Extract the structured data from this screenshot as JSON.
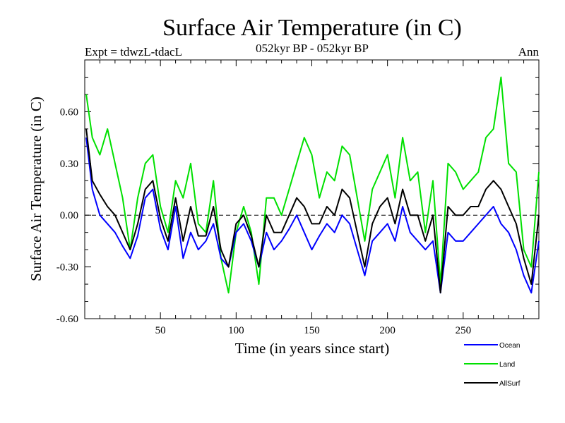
{
  "chart_data": {
    "type": "line",
    "title": "Surface Air Temperature (in C)",
    "subtitle_left": "Expt = tdwzL-tdacL",
    "subtitle_center": "052kyr BP - 052kyr BP",
    "subtitle_right": "Ann",
    "xlabel": "Time (in years since start)",
    "ylabel": "Surface Air Temperature (in C)",
    "xlim": [
      0,
      300
    ],
    "ylim": [
      -0.6,
      0.9
    ],
    "xticks": [
      50,
      100,
      150,
      200,
      250
    ],
    "xtick_labels": [
      "50",
      "100",
      "150",
      "200",
      "250"
    ],
    "yticks": [
      -0.6,
      -0.3,
      0.0,
      0.3,
      0.6
    ],
    "ytick_labels": [
      "-0.60",
      "-0.30",
      "0.00",
      "0.30",
      "0.60"
    ],
    "zero_line": "dashed",
    "legend_position": "bottom-right",
    "series": [
      {
        "name": "Ocean",
        "color": "#0000ff",
        "x": [
          1,
          5,
          10,
          15,
          20,
          25,
          30,
          35,
          40,
          45,
          50,
          55,
          60,
          65,
          70,
          75,
          80,
          85,
          90,
          95,
          100,
          105,
          110,
          115,
          120,
          125,
          130,
          135,
          140,
          145,
          150,
          155,
          160,
          165,
          170,
          175,
          180,
          185,
          190,
          195,
          200,
          205,
          210,
          215,
          220,
          225,
          230,
          235,
          240,
          245,
          250,
          255,
          260,
          265,
          270,
          275,
          280,
          285,
          290,
          295,
          300
        ],
        "values": [
          0.45,
          0.15,
          0.0,
          -0.05,
          -0.1,
          -0.18,
          -0.25,
          -0.12,
          0.1,
          0.15,
          -0.08,
          -0.2,
          0.05,
          -0.25,
          -0.1,
          -0.2,
          -0.15,
          -0.05,
          -0.25,
          -0.3,
          -0.1,
          -0.05,
          -0.15,
          -0.3,
          -0.1,
          -0.2,
          -0.15,
          -0.08,
          0.0,
          -0.1,
          -0.2,
          -0.12,
          -0.05,
          -0.1,
          0.0,
          -0.05,
          -0.2,
          -0.35,
          -0.15,
          -0.1,
          -0.05,
          -0.15,
          0.05,
          -0.1,
          -0.15,
          -0.2,
          -0.15,
          -0.45,
          -0.1,
          -0.15,
          -0.15,
          -0.1,
          -0.05,
          0.0,
          0.05,
          -0.05,
          -0.1,
          -0.2,
          -0.35,
          -0.45,
          -0.15
        ]
      },
      {
        "name": "Land",
        "color": "#00e000",
        "x": [
          1,
          5,
          10,
          15,
          20,
          25,
          30,
          35,
          40,
          45,
          50,
          55,
          60,
          65,
          70,
          75,
          80,
          85,
          90,
          95,
          100,
          105,
          110,
          115,
          120,
          125,
          130,
          135,
          140,
          145,
          150,
          155,
          160,
          165,
          170,
          175,
          180,
          185,
          190,
          195,
          200,
          205,
          210,
          215,
          220,
          225,
          230,
          235,
          240,
          245,
          250,
          255,
          260,
          265,
          270,
          275,
          280,
          285,
          290,
          295,
          300
        ],
        "values": [
          0.7,
          0.45,
          0.35,
          0.5,
          0.3,
          0.1,
          -0.2,
          0.1,
          0.3,
          0.35,
          0.05,
          -0.1,
          0.2,
          0.1,
          0.3,
          -0.05,
          -0.1,
          0.2,
          -0.25,
          -0.45,
          -0.1,
          0.05,
          -0.1,
          -0.4,
          0.1,
          0.1,
          0.0,
          0.15,
          0.3,
          0.45,
          0.35,
          0.1,
          0.25,
          0.2,
          0.4,
          0.35,
          0.1,
          -0.15,
          0.15,
          0.25,
          0.35,
          0.1,
          0.45,
          0.2,
          0.25,
          -0.1,
          0.2,
          -0.4,
          0.3,
          0.25,
          0.15,
          0.2,
          0.25,
          0.45,
          0.5,
          0.8,
          0.3,
          0.25,
          -0.2,
          -0.3,
          0.25
        ]
      },
      {
        "name": "AllSurf",
        "color": "#000000",
        "x": [
          1,
          5,
          10,
          15,
          20,
          25,
          30,
          35,
          40,
          45,
          50,
          55,
          60,
          65,
          70,
          75,
          80,
          85,
          90,
          95,
          100,
          105,
          110,
          115,
          120,
          125,
          130,
          135,
          140,
          145,
          150,
          155,
          160,
          165,
          170,
          175,
          180,
          185,
          190,
          195,
          200,
          205,
          210,
          215,
          220,
          225,
          230,
          235,
          240,
          245,
          250,
          255,
          260,
          265,
          270,
          275,
          280,
          285,
          290,
          295,
          300
        ],
        "values": [
          0.5,
          0.2,
          0.12,
          0.05,
          0.0,
          -0.1,
          -0.2,
          -0.05,
          0.15,
          0.2,
          -0.02,
          -0.15,
          0.1,
          -0.15,
          0.05,
          -0.12,
          -0.12,
          0.05,
          -0.2,
          -0.3,
          -0.05,
          0.0,
          -0.12,
          -0.3,
          0.0,
          -0.1,
          -0.1,
          0.0,
          0.1,
          0.05,
          -0.05,
          -0.05,
          0.05,
          0.0,
          0.15,
          0.1,
          -0.1,
          -0.3,
          -0.05,
          0.05,
          0.1,
          -0.05,
          0.15,
          0.0,
          0.0,
          -0.15,
          0.0,
          -0.45,
          0.05,
          0.0,
          0.0,
          0.05,
          0.05,
          0.15,
          0.2,
          0.15,
          0.05,
          -0.05,
          -0.25,
          -0.4,
          0.0
        ]
      }
    ]
  }
}
